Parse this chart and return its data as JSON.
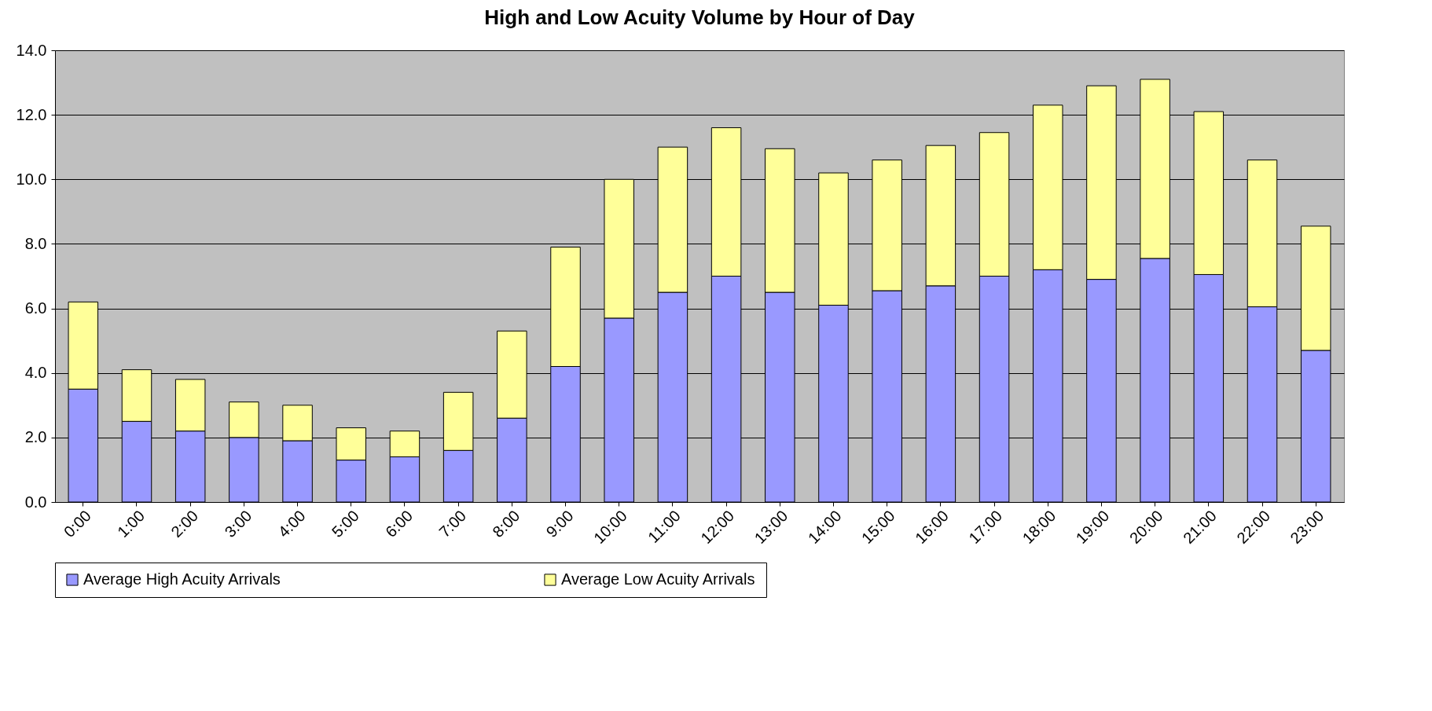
{
  "chart_data": {
    "type": "bar",
    "title": "High and Low Acuity Volume by Hour of Day",
    "stacked": true,
    "grid": "y",
    "legend": "bottom",
    "categories": [
      "0:00",
      "1:00",
      "2:00",
      "3:00",
      "4:00",
      "5:00",
      "6:00",
      "7:00",
      "8:00",
      "9:00",
      "10:00",
      "11:00",
      "12:00",
      "13:00",
      "14:00",
      "15:00",
      "16:00",
      "17:00",
      "18:00",
      "19:00",
      "20:00",
      "21:00",
      "22:00",
      "23:00"
    ],
    "series": [
      {
        "name": "Average High Acuity Arrivals",
        "color": "#9999ff",
        "values": [
          3.5,
          2.5,
          2.2,
          2.0,
          1.9,
          1.3,
          1.4,
          1.6,
          2.6,
          4.2,
          5.7,
          6.5,
          7.0,
          6.5,
          6.1,
          6.55,
          6.7,
          7.0,
          7.2,
          6.9,
          7.55,
          7.05,
          6.05,
          4.7
        ]
      },
      {
        "name": "Average Low Acuity Arrivals",
        "color": "#ffff99",
        "values": [
          2.7,
          1.6,
          1.6,
          1.1,
          1.1,
          1.0,
          0.8,
          1.8,
          2.7,
          3.7,
          4.3,
          4.5,
          4.6,
          4.45,
          4.1,
          4.05,
          4.35,
          4.45,
          5.1,
          6.0,
          5.55,
          5.05,
          4.55,
          3.85
        ]
      }
    ],
    "ylim": [
      0,
      14
    ],
    "yticks": [
      {
        "value": 0,
        "label": "0.0"
      },
      {
        "value": 2,
        "label": "2.0"
      },
      {
        "value": 4,
        "label": "4.0"
      },
      {
        "value": 6,
        "label": "6.0"
      },
      {
        "value": 8,
        "label": "8.0"
      },
      {
        "value": 10,
        "label": "10.0"
      },
      {
        "value": 12,
        "label": "12.0"
      },
      {
        "value": 14,
        "label": "14.0"
      }
    ]
  }
}
